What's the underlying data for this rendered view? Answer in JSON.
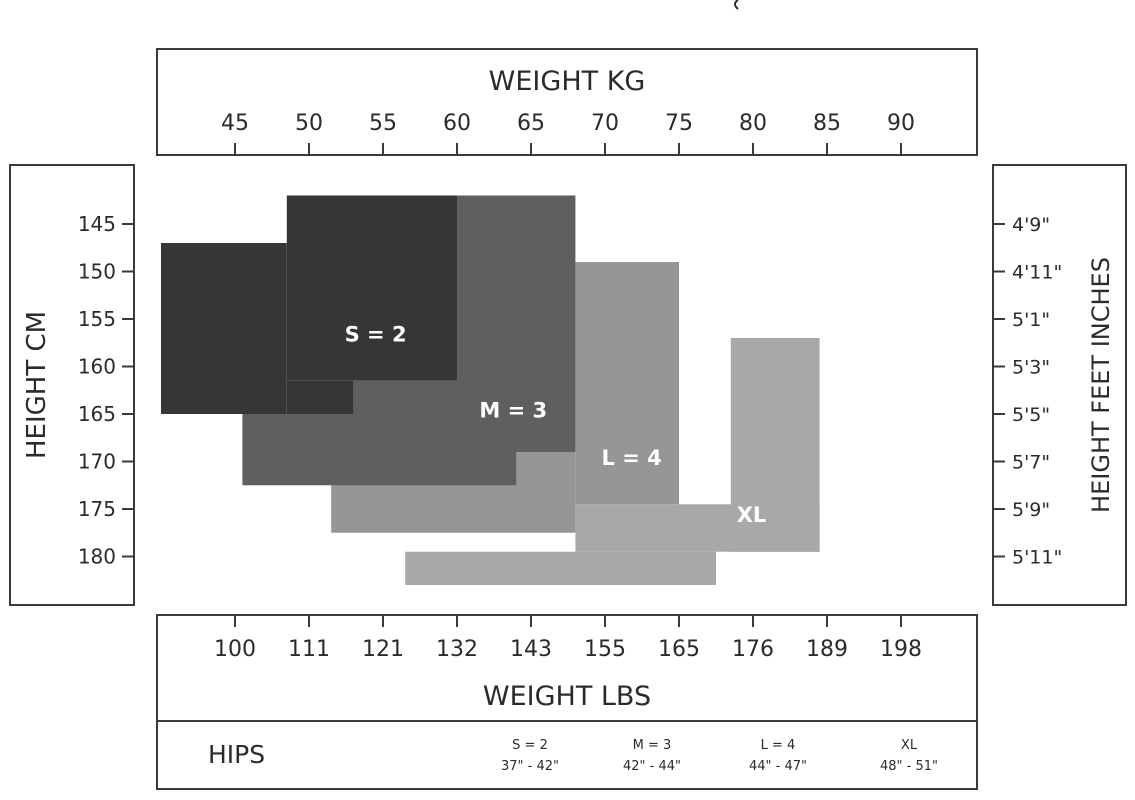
{
  "chart_data": {
    "type": "size-chart",
    "top_axis": {
      "label": "WEIGHT KG",
      "ticks": [
        45,
        50,
        55,
        60,
        65,
        70,
        75,
        80,
        85,
        90
      ]
    },
    "bottom_axis": {
      "label": "WEIGHT LBS",
      "ticks": [
        "100",
        "111",
        "121",
        "132",
        "143",
        "155",
        "165",
        "176",
        "189",
        "198"
      ]
    },
    "left_axis": {
      "label": "HEIGHT CM",
      "ticks": [
        145,
        150,
        155,
        160,
        165,
        170,
        175,
        180
      ]
    },
    "right_axis": {
      "label": "HEIGHT FEET INCHES",
      "ticks": [
        "4'9\"",
        "4'11\"",
        "5'1\"",
        "5'3\"",
        "5'5\"",
        "5'7\"",
        "5'9\"",
        "5'11\""
      ]
    },
    "sizes": [
      {
        "label": "XL",
        "color": "#a8a8a8",
        "regions": [
          {
            "weight_kg": [
              78.5,
              84.5
            ],
            "height_cm": [
              157,
              179.5
            ]
          },
          {
            "weight_kg": [
              68,
              84.5
            ],
            "height_cm": [
              174.5,
              179.5
            ]
          },
          {
            "weight_kg": [
              56.5,
              77.5
            ],
            "height_cm": [
              179.5,
              183
            ]
          }
        ]
      },
      {
        "label": "L = 4",
        "color": "#969696",
        "regions": [
          {
            "weight_kg": [
              68,
              75
            ],
            "height_cm": [
              149,
              174.5
            ]
          },
          {
            "weight_kg": [
              51.5,
              68
            ],
            "height_cm": [
              169,
              177.5
            ]
          }
        ]
      },
      {
        "label": "M = 3",
        "color": "#5f5f5f",
        "regions": [
          {
            "weight_kg": [
              60,
              68
            ],
            "height_cm": [
              142,
              169
            ]
          },
          {
            "weight_kg": [
              53,
              60
            ],
            "height_cm": [
              161.5,
              169
            ]
          },
          {
            "weight_kg": [
              45.5,
              64
            ],
            "height_cm": [
              165,
              172.5
            ]
          }
        ]
      },
      {
        "label": "S = 2",
        "color": "#363636",
        "regions": [
          {
            "weight_kg": [
              48.5,
              60
            ],
            "height_cm": [
              142,
              161.5
            ]
          },
          {
            "weight_kg": [
              40,
              48.5
            ],
            "height_cm": [
              147,
              165
            ]
          },
          {
            "weight_kg": [
              48.5,
              53
            ],
            "height_cm": [
              161.5,
              165
            ]
          }
        ]
      }
    ],
    "size_label_positions": [
      {
        "label": "S = 2",
        "weight_kg": 54.5,
        "height_cm": 156.5
      },
      {
        "label": "M = 3",
        "weight_kg": 63.8,
        "height_cm": 164.5
      },
      {
        "label": "L = 4",
        "weight_kg": 71.8,
        "height_cm": 169.5
      },
      {
        "label": "XL",
        "weight_kg": 79.9,
        "height_cm": 175.5
      }
    ],
    "hips": {
      "label": "HIPS",
      "entries": [
        {
          "size": "S = 2",
          "range": "37\" - 42\""
        },
        {
          "size": "M = 3",
          "range": "42\" - 44\""
        },
        {
          "size": "L = 4",
          "range": "44\" - 47\""
        },
        {
          "size": "XL",
          "range": "48\" - 51\""
        }
      ]
    }
  }
}
